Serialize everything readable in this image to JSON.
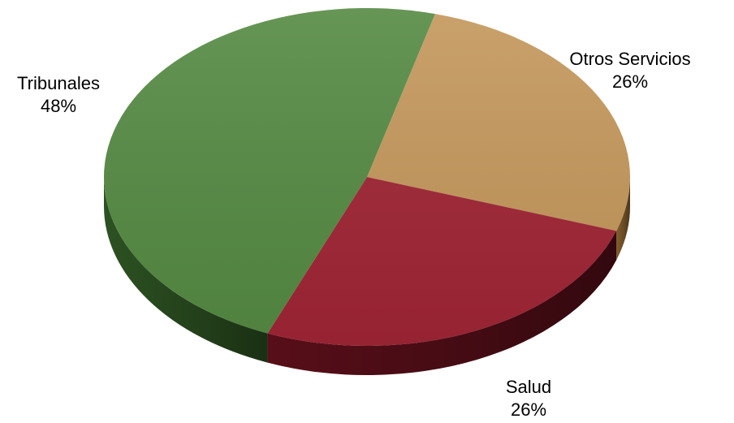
{
  "chart_data": {
    "type": "pie",
    "title": "",
    "style": "3d",
    "slices": [
      {
        "label": "Otros Servicios",
        "value": 26,
        "value_label": "26%",
        "color": "#c4975b",
        "side_color": "#8a6230"
      },
      {
        "label": "Salud",
        "value": 26,
        "value_label": "26%",
        "color": "#a02535",
        "side_color": "#5c0f1a"
      },
      {
        "label": "Tribunales",
        "value": 48,
        "value_label": "48%",
        "color": "#558a43",
        "side_color": "#2f5624"
      }
    ]
  }
}
